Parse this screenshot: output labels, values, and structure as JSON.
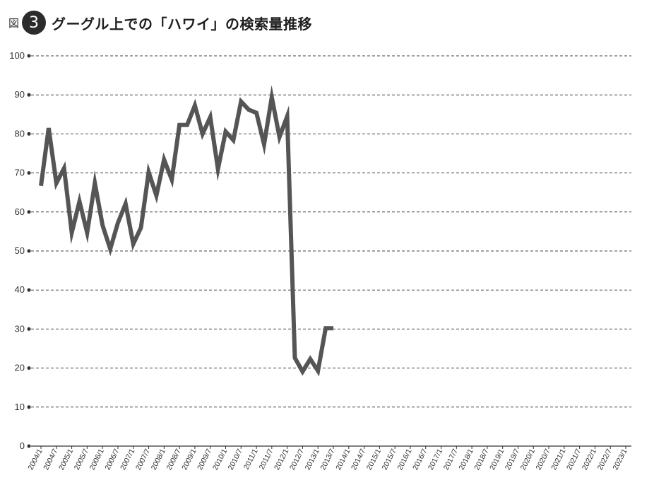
{
  "header": {
    "fig_label": "図",
    "fig_number": "3",
    "title": "グーグル上での「ハワイ」の検索量推移"
  },
  "chart_data": {
    "type": "line",
    "title": "グーグル上での「ハワイ」の検索量推移",
    "xlabel": "",
    "ylabel": "",
    "ylim": [
      0,
      100
    ],
    "yticks": [
      0,
      10,
      20,
      30,
      40,
      50,
      60,
      70,
      80,
      90,
      100
    ],
    "grid": "horizontal-dashed",
    "categories": [
      "2004/1",
      "2004/7",
      "2005/1",
      "2005/7",
      "2006/1",
      "2006/7",
      "2007/1",
      "2007/7",
      "2008/1",
      "2008/7",
      "2009/1",
      "2009/7",
      "2010/1",
      "2010/7",
      "2011/1",
      "2011/7",
      "2012/1",
      "2012/7",
      "2013/1",
      "2013/7",
      "2014/1",
      "2014/7",
      "2015/1",
      "2015/7",
      "2016/1",
      "2016/7",
      "2017/1",
      "2017/7",
      "2018/1",
      "2018/7",
      "2019/1",
      "2019/7",
      "2020/1",
      "2020/7",
      "2021/1",
      "2021/7",
      "2022/1",
      "2022/7",
      "2023/1"
    ],
    "series": [
      {
        "color": "#555555",
        "x": [
          "2004/1",
          "2004/4",
          "2004/7",
          "2004/10",
          "2005/1",
          "2005/4",
          "2005/7",
          "2005/10",
          "2006/1",
          "2006/4",
          "2006/7",
          "2006/10",
          "2007/1",
          "2007/4",
          "2007/7",
          "2007/10",
          "2008/1",
          "2008/4",
          "2008/7",
          "2008/10",
          "2009/1",
          "2009/4",
          "2009/7",
          "2009/10",
          "2010/1",
          "2010/4",
          "2010/7",
          "2010/10",
          "2011/1",
          "2011/4",
          "2011/7",
          "2011/10",
          "2012/1",
          "2012/4",
          "2012/7",
          "2012/10",
          "2013/1",
          "2013/4",
          "2013/7"
        ],
        "values": [
          66.7,
          81.5,
          67.4,
          71.2,
          54.7,
          62.7,
          54.7,
          67.4,
          56.6,
          50.5,
          57.2,
          62.1,
          51.8,
          56.0,
          70.2,
          64.2,
          73.4,
          68.3,
          82.3,
          82.3,
          87.3,
          80.0,
          84.3,
          71.0,
          80.6,
          78.4,
          88.3,
          86.2,
          85.4,
          77.3,
          89.4,
          79.2,
          84.5,
          22.6,
          19.1,
          22.3,
          19.3,
          30.2,
          30.2
        ]
      }
    ]
  }
}
